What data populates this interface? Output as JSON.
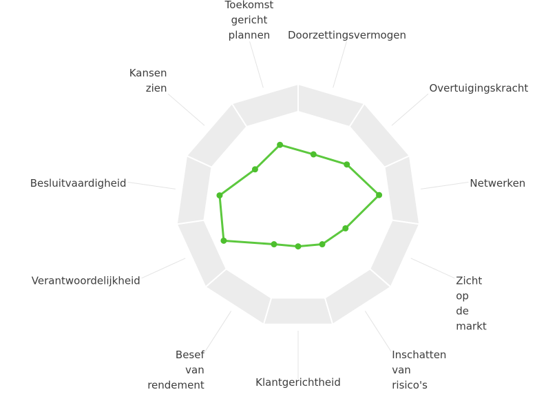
{
  "chart_data": {
    "type": "radar",
    "title": "",
    "categories": [
      "Doorzettingsvermogen",
      "Overtuigingskracht",
      "Netwerken",
      "Zicht op de markt",
      "Inschatten van risico's",
      "Klantgerichtheid",
      "Besef van rendement",
      "Verantwoordelijkheid",
      "Besluitvaardigheid",
      "Kansen zien",
      "Toekomst gericht plannen"
    ],
    "label_lines": [
      [
        "Doorzettingsvermogen"
      ],
      [
        "Overtuigingskracht"
      ],
      [
        "Netwerken"
      ],
      [
        "Zicht",
        "op",
        "de",
        "markt"
      ],
      [
        "Inschatten",
        "van",
        "risico's"
      ],
      [
        "Klantgerichtheid"
      ],
      [
        "Besef",
        "van",
        "rendement"
      ],
      [
        "Verantwoordelijkheid"
      ],
      [
        "Besluitvaardigheid"
      ],
      [
        "Kansen",
        "zien"
      ],
      [
        "Toekomst",
        "gericht",
        "plannen"
      ]
    ],
    "series": [
      {
        "values": [
          2.2,
          2.6,
          3.3,
          2.1,
          1.8,
          1.6,
          1.8,
          3.3,
          3.2,
          2.3,
          2.6
        ],
        "color": "#5cc83e"
      }
    ],
    "rlim": [
      0,
      5
    ],
    "band_color": "#ececec",
    "grid": false
  }
}
